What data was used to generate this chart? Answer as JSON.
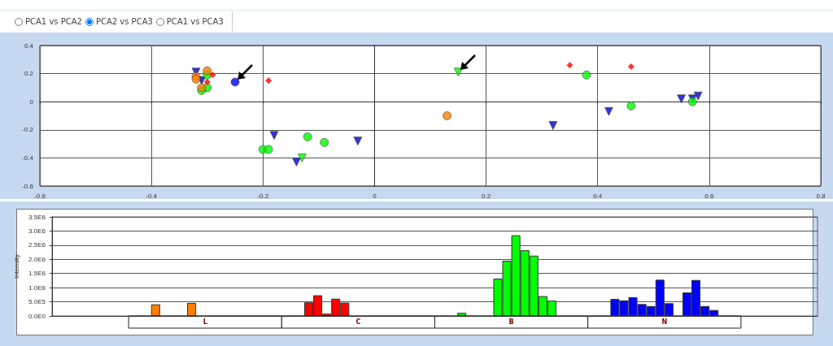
{
  "chart_data": [
    {
      "type": "scatter",
      "annotations": [
        "PCA1 vs PCA2",
        "PCA2 vs PCA3",
        "PCA1 vs PCA3"
      ],
      "xlim": [
        -0.6,
        0.8
      ],
      "xticks": [
        -0.6,
        -0.4,
        -0.2,
        0,
        0.2,
        0.4,
        0.6,
        0.8
      ],
      "ylim": [
        -0.6,
        0.4
      ],
      "yticks": [
        -0.6,
        -0.4,
        -0.2,
        0,
        0.2,
        0.4
      ],
      "grid": true,
      "series": [
        {
          "color": "#ff8000",
          "marker": "circle",
          "x": [
            -0.3,
            -0.32,
            -0.32,
            -0.31,
            0.13
          ],
          "values": [
            0.22,
            0.18,
            0.16,
            0.1,
            -0.1
          ]
        },
        {
          "color": "#ff0000",
          "marker": "diamond",
          "x": [
            -0.29,
            -0.3,
            -0.19,
            0.35,
            0.46
          ],
          "values": [
            0.19,
            0.14,
            0.15,
            0.26,
            0.25
          ]
        },
        {
          "color": "#00ff00",
          "marker": "circle",
          "x": [
            -0.3,
            -0.3,
            -0.31,
            -0.2,
            -0.19,
            -0.12,
            -0.09,
            0.38,
            0.46,
            0.57
          ],
          "values": [
            0.19,
            0.1,
            0.08,
            -0.34,
            -0.34,
            -0.25,
            -0.29,
            0.19,
            -0.03,
            0.0
          ]
        },
        {
          "color": "#00ff00",
          "marker": "triangle",
          "x": [
            -0.13,
            0.15
          ],
          "values": [
            -0.4,
            0.21
          ]
        },
        {
          "color": "#0000cc",
          "marker": "triangle",
          "x": [
            -0.32,
            -0.31,
            -0.18,
            -0.14,
            -0.03,
            0.32,
            0.42,
            0.55,
            0.57,
            0.58
          ],
          "values": [
            0.21,
            0.15,
            -0.24,
            -0.43,
            -0.28,
            -0.17,
            -0.07,
            0.02,
            0.02,
            0.04
          ]
        },
        {
          "color": "#0000ff",
          "marker": "circle",
          "x": [
            -0.25
          ],
          "values": [
            0.14
          ]
        }
      ]
    },
    {
      "type": "bar",
      "ylabel": "Intensity",
      "grid": "y",
      "annotations": [
        "L",
        "C",
        "B",
        "N"
      ],
      "ylim": [
        0,
        3500000
      ],
      "yticks": [
        {
          "value": 0,
          "label": "0.0E0"
        },
        {
          "value": 500000,
          "label": "5.0E5"
        },
        {
          "value": 1000000,
          "label": "1.0E6"
        },
        {
          "value": 1500000,
          "label": "1.5E6"
        },
        {
          "value": 2000000,
          "label": "2.0E6"
        },
        {
          "value": 2500000,
          "label": "2.5E6"
        },
        {
          "value": 3000000,
          "label": "3.0E6"
        },
        {
          "value": 3500000,
          "label": "3.5E6"
        }
      ],
      "categories": [
        null,
        null,
        null,
        null,
        null,
        null,
        null,
        null,
        null,
        null,
        null,
        null,
        null,
        null,
        null,
        null,
        null,
        null,
        null,
        null,
        null,
        null,
        null,
        null,
        null,
        null,
        null,
        null,
        null,
        null,
        null,
        null,
        null,
        null,
        null,
        null,
        null,
        null,
        null,
        null,
        null,
        null,
        null,
        null,
        null,
        null,
        null,
        null,
        null,
        null,
        null,
        null,
        null,
        null,
        null,
        null,
        null,
        null,
        null,
        null,
        null,
        null,
        null,
        null,
        null,
        null,
        null,
        null,
        null,
        null,
        null,
        null,
        null,
        null,
        null,
        null,
        null,
        null,
        null,
        null,
        null,
        null,
        null,
        null,
        null
      ],
      "values": [
        null,
        null,
        null,
        null,
        null,
        null,
        null,
        null,
        null,
        null,
        null,
        410000,
        null,
        null,
        null,
        460000,
        null,
        null,
        null,
        null,
        null,
        null,
        null,
        null,
        null,
        null,
        null,
        null,
        480000,
        730000,
        80000,
        610000,
        470000,
        null,
        null,
        null,
        null,
        null,
        null,
        null,
        null,
        null,
        null,
        null,
        null,
        110000,
        null,
        null,
        null,
        1320000,
        1950000,
        2850000,
        2320000,
        2130000,
        700000,
        540000,
        null,
        null,
        null,
        null,
        null,
        null,
        600000,
        550000,
        660000,
        420000,
        350000,
        1280000,
        450000,
        null,
        830000,
        1270000,
        350000,
        210000,
        null,
        null,
        null,
        null,
        null,
        null,
        null,
        null,
        null,
        null,
        null
      ],
      "colors": [
        null,
        null,
        null,
        null,
        null,
        null,
        null,
        null,
        null,
        null,
        null,
        "#ff8000",
        null,
        null,
        null,
        "#ff8000",
        null,
        null,
        null,
        null,
        null,
        null,
        null,
        null,
        null,
        null,
        null,
        null,
        "#ff0000",
        "#ff0000",
        "#ff0000",
        "#ff0000",
        "#ff0000",
        null,
        null,
        null,
        null,
        null,
        null,
        null,
        null,
        null,
        null,
        null,
        null,
        "#00ff00",
        null,
        null,
        null,
        "#00ff00",
        "#00ff00",
        "#00ff00",
        "#00ff00",
        "#00ff00",
        "#00ff00",
        "#00ff00",
        null,
        null,
        null,
        null,
        null,
        null,
        "#0000ff",
        "#0000ff",
        "#0000ff",
        "#0000ff",
        "#0000ff",
        "#0000ff",
        "#0000ff",
        null,
        "#0000ff",
        "#0000ff",
        "#0000ff",
        "#0000ff",
        null,
        null,
        null,
        null,
        null,
        null,
        null,
        null,
        null,
        null,
        null
      ]
    }
  ]
}
